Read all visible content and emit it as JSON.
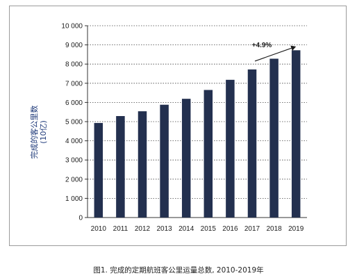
{
  "chart_data": {
    "type": "bar",
    "categories": [
      "2010",
      "2011",
      "2012",
      "2013",
      "2014",
      "2015",
      "2016",
      "2017",
      "2018",
      "2019"
    ],
    "values": [
      4930,
      5290,
      5540,
      5880,
      6190,
      6650,
      7180,
      7720,
      8280,
      8720
    ],
    "ylabel": "完成的客公里数",
    "ylabel_unit": "(10亿)",
    "ylim": [
      0,
      10000
    ],
    "yticks": [
      "0",
      "1 000",
      "2 000",
      "3 000",
      "4 000",
      "5 000",
      "6 000",
      "7 000",
      "8 000",
      "9 000",
      "10 000"
    ],
    "grid": true,
    "bar_color": "#23304f",
    "annotation": {
      "text": "+4.9%"
    }
  },
  "caption": "图1.  完成的定期航班客公里运量总数, 2010-2019年"
}
